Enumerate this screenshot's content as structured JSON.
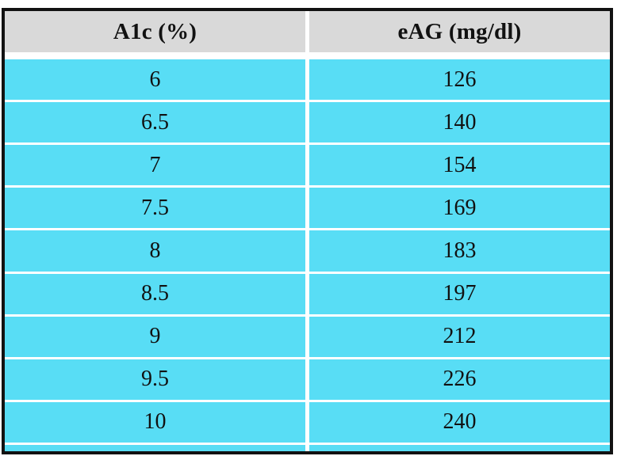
{
  "colors": {
    "header_bg": "#D9D9D9",
    "row_bg": "#58DDF5",
    "border": "#121212",
    "divider": "#FFFFFF",
    "text": "#111111"
  },
  "chart_data": {
    "type": "table",
    "columns": [
      "A1c (%)",
      "eAG (mg/dl)"
    ],
    "rows": [
      [
        "6",
        "126"
      ],
      [
        "6.5",
        "140"
      ],
      [
        "7",
        "154"
      ],
      [
        "7.5",
        "169"
      ],
      [
        "8",
        "183"
      ],
      [
        "8.5",
        "197"
      ],
      [
        "9",
        "212"
      ],
      [
        "9.5",
        "226"
      ],
      [
        "10",
        "240"
      ]
    ]
  }
}
